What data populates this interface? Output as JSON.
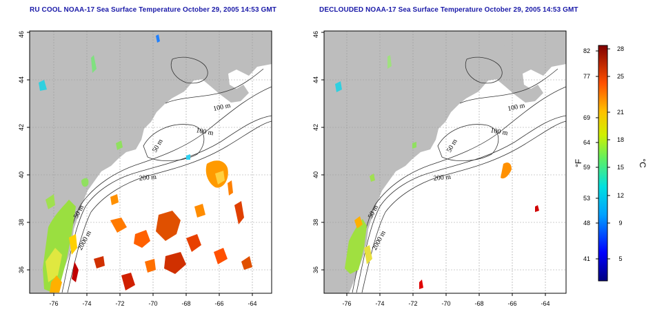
{
  "titles": {
    "left": "RU COOL NOAA-17 Sea Surface Temperature October 29, 2005 14:53 GMT",
    "right": "DECLOUDED NOAA-17 Sea Surface Temperature October 29, 2005 14:53 GMT"
  },
  "axes": {
    "x_ticks": [
      "-76",
      "-74",
      "-72",
      "-70",
      "-68",
      "-66",
      "-64"
    ],
    "y_ticks": [
      "36",
      "38",
      "40",
      "42",
      "44",
      "46"
    ]
  },
  "contour_labels": {
    "left": [
      "100 m",
      "100 m",
      "50 m",
      "200 m",
      "50 m",
      "2000 m"
    ],
    "right": [
      "100 m",
      "100 m",
      "50 m",
      "200 m",
      "50 m",
      "2000 m"
    ]
  },
  "colorbar": {
    "fahrenheit_ticks": [
      "82",
      "77",
      "69",
      "64",
      "59",
      "53",
      "48",
      "41"
    ],
    "celsius_ticks": [
      "28",
      "25",
      "21",
      "18",
      "15",
      "12",
      "9",
      "5"
    ],
    "unit_f": "°F",
    "unit_c": "°C"
  },
  "colors": {
    "land": "#bdbdbd",
    "title": "#1a1aa8",
    "grid": "#9a9a9a"
  }
}
